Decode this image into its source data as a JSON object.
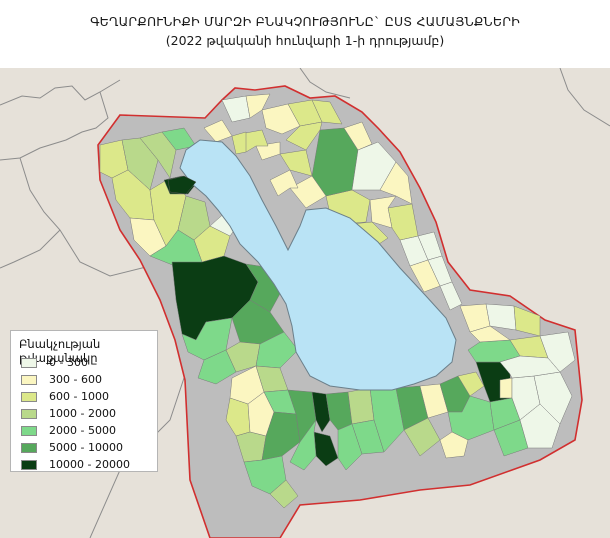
{
  "title": "ԳԵՂԱՐՔՈՒՆԻՔԻ ՄԱՐԶԻ ԲՆԱԿՉՈՒԹՅՈՒՆԸ` ԸՍՏ ՀԱՄԱՅՆՔՆԵՐԻ",
  "subtitle": "(2022 թվականի հունվարի 1-ի դրությամբ)",
  "colors": {
    "lake": "#b9e3f5",
    "surrounding_land": "#bdbdbd",
    "outside_region": "#e6e1d9",
    "region_border": "#d12f2f",
    "other_border": "#8c8c8c"
  },
  "legend": {
    "title": "Բնակչության թվաքանակը",
    "items": [
      {
        "label": "0 - 300",
        "color": "#eef7e8"
      },
      {
        "label": "300 - 600",
        "color": "#fbf6c1"
      },
      {
        "label": "600 - 1000",
        "color": "#dce88a"
      },
      {
        "label": "1000 - 2000",
        "color": "#b9d98b"
      },
      {
        "label": "2000 - 5000",
        "color": "#7ed98a"
      },
      {
        "label": "5000 - 10000",
        "color": "#56a85c"
      },
      {
        "label": "10000 - 20000",
        "color": "#0b3d14"
      }
    ]
  }
}
